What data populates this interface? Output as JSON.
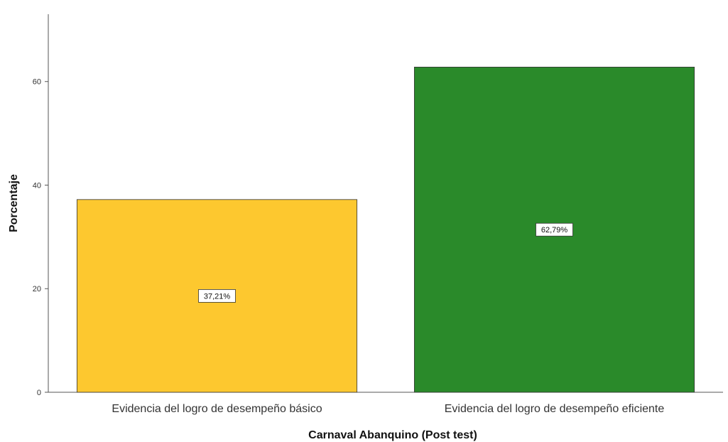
{
  "chart_data": {
    "type": "bar",
    "categories": [
      "Evidencia del logro de desempeño básico",
      "Evidencia del logro de desempeño eficiente"
    ],
    "values": [
      37.21,
      62.79
    ],
    "data_labels": [
      "37,21%",
      "62,79%"
    ],
    "colors": [
      "#fdc82f",
      "#2a8a2a"
    ],
    "title": "",
    "xlabel": "Carnaval Abanquino (Post test)",
    "ylabel": "Porcentaje",
    "ylim": [
      0,
      73
    ],
    "yticks": [
      0,
      20,
      40,
      60
    ],
    "ytick_labels": [
      "0",
      "20",
      "40",
      "60"
    ],
    "grid": false,
    "legend": "none"
  }
}
